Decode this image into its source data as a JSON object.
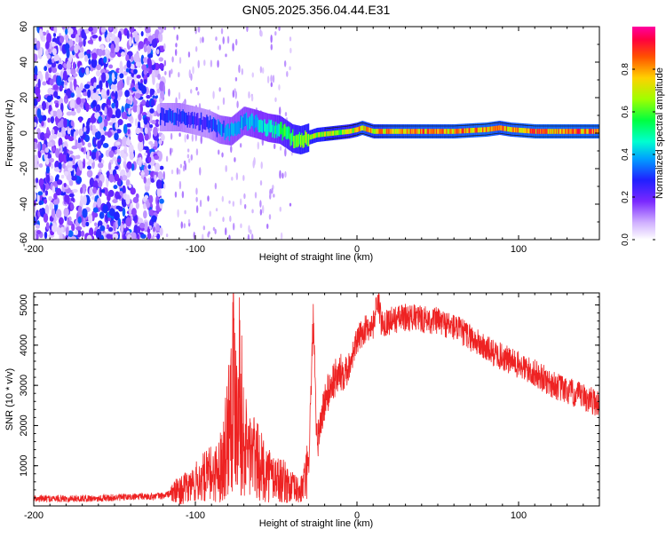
{
  "figure_title": "GN05.2025.356.04.44.E31",
  "colors": {
    "snr_line": "#ee2222",
    "axis": "#000000",
    "colormap": [
      "#ffffff",
      "#d8b8ff",
      "#8a3cff",
      "#5a00ff",
      "#1a1aff",
      "#00c8ff",
      "#00ff80",
      "#8aff00",
      "#ffd000",
      "#ff4000",
      "#ff0060"
    ]
  },
  "chart_data": [
    {
      "type": "heatmap",
      "title": "GN05.2025.356.04.44.E31",
      "xlabel": "Height of straight line (km)",
      "ylabel": "Frequency (Hz)",
      "xlim": [
        -200,
        150
      ],
      "ylim": [
        -60,
        60
      ],
      "xticks": [
        "-200",
        "-100",
        "0",
        "100"
      ],
      "yticks": [
        "60",
        "40",
        "20",
        "0",
        "-20",
        "-40",
        "-60"
      ],
      "colorbar_label": "Normalized spectral amplitude",
      "colorbar_range": [
        0.0,
        1.0
      ],
      "colorbar_ticks": [
        "0.0",
        "0.2",
        "0.4",
        "0.6",
        "0.8"
      ],
      "ridge": {
        "description": "dominant spectral component frequency vs height",
        "x": [
          -122,
          -110,
          -100,
          -92,
          -85,
          -78,
          -70,
          -62,
          -55,
          -48,
          -40,
          -35,
          -25,
          -15,
          -5,
          0,
          3,
          10,
          20,
          40,
          60,
          80,
          88,
          95,
          110,
          130,
          150
        ],
        "freq": [
          9,
          9,
          7,
          5,
          2,
          1,
          7,
          5,
          3,
          2,
          -3,
          -4,
          -1,
          0,
          1,
          2,
          3,
          1,
          1,
          1,
          1,
          2,
          3,
          2,
          1,
          1,
          1
        ],
        "amplitude": [
          0.3,
          0.35,
          0.3,
          0.3,
          0.4,
          0.45,
          0.45,
          0.5,
          0.5,
          0.6,
          0.7,
          0.75,
          0.8,
          0.8,
          0.75,
          0.85,
          0.9,
          0.85,
          0.9,
          0.92,
          0.92,
          0.95,
          0.9,
          0.92,
          0.95,
          0.95,
          0.95
        ]
      },
      "noise_region_x": [
        -200,
        -120
      ]
    },
    {
      "type": "line",
      "xlabel": "Height of straight line (km)",
      "ylabel": "SNR (10 * v/v)",
      "xlim": [
        -200,
        150
      ],
      "ylim": [
        0,
        5300
      ],
      "xticks": [
        "-200",
        "-100",
        "0",
        "100"
      ],
      "yticks": [
        "5000",
        "4000",
        "3000",
        "2000",
        "1000"
      ],
      "series": [
        {
          "name": "SNR",
          "x": [
            -200,
            -160,
            -120,
            -105,
            -95,
            -85,
            -80,
            -77,
            -75,
            -73,
            -70,
            -65,
            -60,
            -55,
            -50,
            -45,
            -40,
            -35,
            -30,
            -27,
            -25,
            -20,
            -15,
            -10,
            -5,
            0,
            5,
            10,
            13,
            15,
            20,
            30,
            40,
            50,
            60,
            70,
            80,
            90,
            100,
            110,
            120,
            130,
            140,
            150
          ],
          "y": [
            180,
            190,
            250,
            450,
            700,
            900,
            1800,
            3500,
            2500,
            3300,
            1500,
            1300,
            1000,
            800,
            700,
            600,
            450,
            350,
            900,
            4700,
            1500,
            2600,
            3100,
            3300,
            3500,
            4100,
            4400,
            4500,
            5200,
            4550,
            4600,
            4700,
            4650,
            4600,
            4450,
            4200,
            3900,
            3700,
            3500,
            3300,
            3050,
            2850,
            2700,
            2550
          ]
        }
      ]
    }
  ]
}
